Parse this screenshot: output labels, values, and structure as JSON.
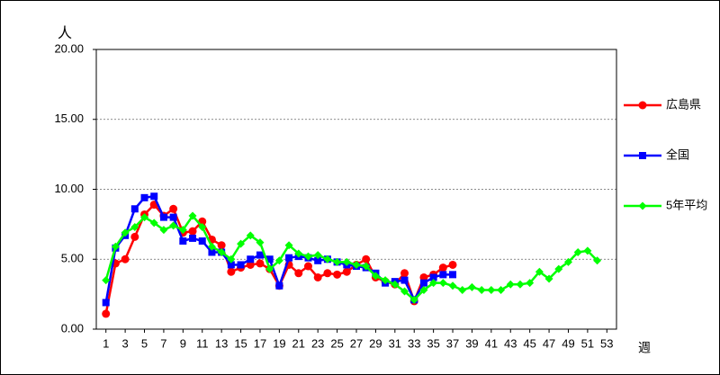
{
  "chart_data": {
    "type": "line",
    "y_label": "人",
    "x_label": "週",
    "x": [
      1,
      2,
      3,
      4,
      5,
      6,
      7,
      8,
      9,
      10,
      11,
      12,
      13,
      14,
      15,
      16,
      17,
      18,
      19,
      20,
      21,
      22,
      23,
      24,
      25,
      26,
      27,
      28,
      29,
      30,
      31,
      32,
      33,
      34,
      35,
      36,
      37,
      38,
      39,
      40,
      41,
      42,
      43,
      44,
      45,
      46,
      47,
      48,
      49,
      50,
      51,
      52,
      53
    ],
    "xlim": [
      0,
      54
    ],
    "xticks": [
      1,
      3,
      5,
      7,
      9,
      11,
      13,
      15,
      17,
      19,
      21,
      23,
      25,
      27,
      29,
      31,
      33,
      35,
      37,
      39,
      41,
      43,
      45,
      47,
      49,
      51,
      53
    ],
    "ylim": [
      0,
      20
    ],
    "yticks": [
      {
        "value": 0,
        "label": "0.00"
      },
      {
        "value": 5,
        "label": "5.00"
      },
      {
        "value": 10,
        "label": "10.00"
      },
      {
        "value": 15,
        "label": "15.00"
      },
      {
        "value": 20,
        "label": "20.00"
      }
    ],
    "grid": true,
    "legend": "right",
    "series": [
      {
        "name": "広島県",
        "color": "#ff0000",
        "marker": "circle",
        "values": [
          1.1,
          4.7,
          5.0,
          6.6,
          8.2,
          8.9,
          8.1,
          8.6,
          6.9,
          7.0,
          7.7,
          6.4,
          6.0,
          4.1,
          4.4,
          4.6,
          4.7,
          4.3,
          3.1,
          4.6,
          4.0,
          4.5,
          3.7,
          4.0,
          3.9,
          4.1,
          4.6,
          5.0,
          3.7,
          3.4,
          3.2,
          4.0,
          2.0,
          3.7,
          3.9,
          4.4,
          4.6,
          null,
          null,
          null,
          null,
          null,
          null,
          null,
          null,
          null,
          null,
          null,
          null,
          null,
          null,
          null,
          null
        ]
      },
      {
        "name": "全国",
        "color": "#0000ff",
        "marker": "square",
        "values": [
          1.9,
          5.8,
          6.7,
          8.6,
          9.4,
          9.5,
          8.0,
          8.0,
          6.3,
          6.5,
          6.3,
          5.5,
          5.5,
          4.6,
          4.6,
          5.0,
          5.3,
          5.0,
          3.1,
          5.1,
          5.2,
          5.1,
          4.9,
          5.0,
          4.8,
          4.6,
          4.5,
          4.4,
          4.0,
          3.3,
          3.4,
          3.5,
          2.1,
          3.3,
          3.7,
          3.9,
          3.9,
          null,
          null,
          null,
          null,
          null,
          null,
          null,
          null,
          null,
          null,
          null,
          null,
          null,
          null,
          null,
          null
        ]
      },
      {
        "name": "5年平均",
        "color": "#00ff00",
        "marker": "diamond",
        "values": [
          3.5,
          5.9,
          6.9,
          7.3,
          8.0,
          7.6,
          7.1,
          7.4,
          7.1,
          8.1,
          7.3,
          5.9,
          5.5,
          5.0,
          6.1,
          6.7,
          6.2,
          4.3,
          4.9,
          6.0,
          5.4,
          5.2,
          5.3,
          5.0,
          4.8,
          4.8,
          4.6,
          4.5,
          3.8,
          3.5,
          3.2,
          2.7,
          2.1,
          2.8,
          3.3,
          3.3,
          3.1,
          2.8,
          3.0,
          2.8,
          2.8,
          2.8,
          3.2,
          3.2,
          3.3,
          4.1,
          3.6,
          4.3,
          4.8,
          5.5,
          5.6,
          4.9,
          null
        ]
      }
    ]
  }
}
